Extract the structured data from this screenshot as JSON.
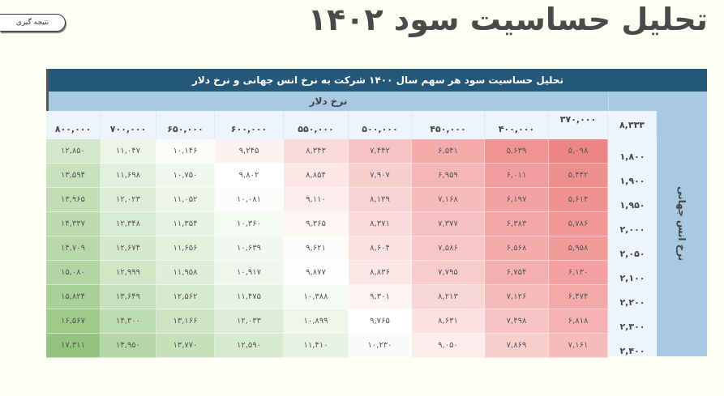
{
  "page": {
    "title": "تحلیل حساسیت سود ۱۴۰۲",
    "button_label": "نتیجه گیری"
  },
  "table": {
    "caption": "تحلیل حساسیت سود هر سهم سال ۱۴۰۰  شرکت به نرخ انس جهانی و نرخ دلار",
    "column_group_label": "نرخ دلار",
    "row_group_label": "نرخ انس جهانی",
    "corner_value": "۸,۳۳۳",
    "columns": [
      "۳۷۰,۰۰۰",
      "۴۰۰,۰۰۰",
      "۴۵۰,۰۰۰",
      "۵۰۰,۰۰۰",
      "۵۵۰,۰۰۰",
      "۶۰۰,۰۰۰",
      "۶۵۰,۰۰۰",
      "۷۰۰,۰۰۰",
      "۸۰۰,۰۰۰"
    ],
    "rows": [
      {
        "label": "۱,۸۰۰",
        "values": [
          "۵,۰۹۸",
          "۵,۶۳۹",
          "۶,۵۴۱",
          "۷,۴۴۲",
          "۸,۳۴۳",
          "۹,۲۴۵",
          "۱۰,۱۴۶",
          "۱۱,۰۴۷",
          "۱۲,۸۵۰"
        ]
      },
      {
        "label": "۱,۹۰۰",
        "values": [
          "۵,۴۴۲",
          "۶,۰۱۱",
          "۶,۹۵۹",
          "۷,۹۰۷",
          "۸,۸۵۴",
          "۹,۸۰۲",
          "۱۰,۷۵۰",
          "۱۱,۶۹۸",
          "۱۳,۵۹۴"
        ]
      },
      {
        "label": "۱,۹۵۰",
        "values": [
          "۵,۶۱۴",
          "۶,۱۹۷",
          "۷,۱۶۸",
          "۸,۱۳۹",
          "۹,۱۱۰",
          "۱۰,۰۸۱",
          "۱۱,۰۵۲",
          "۱۲,۰۲۳",
          "۱۳,۹۶۵"
        ]
      },
      {
        "label": "۲,۰۰۰",
        "values": [
          "۵,۷۸۶",
          "۶,۳۸۳",
          "۷,۳۷۷",
          "۸,۳۷۱",
          "۹,۳۶۵",
          "۱۰,۳۶۰",
          "۱۱,۳۵۴",
          "۱۲,۳۴۸",
          "۱۴,۳۳۷"
        ]
      },
      {
        "label": "۲,۰۵۰",
        "values": [
          "۵,۹۵۸",
          "۶,۵۶۸",
          "۷,۵۸۶",
          "۸,۶۰۴",
          "۹,۶۲۱",
          "۱۰,۶۳۹",
          "۱۱,۶۵۶",
          "۱۲,۶۷۴",
          "۱۴,۷۰۹"
        ]
      },
      {
        "label": "۲,۱۰۰",
        "values": [
          "۶,۱۳۰",
          "۶,۷۵۴",
          "۷,۷۹۵",
          "۸,۸۳۶",
          "۹,۸۷۷",
          "۱۰,۹۱۷",
          "۱۱,۹۵۸",
          "۱۲,۹۹۹",
          "۱۵,۰۸۰"
        ]
      },
      {
        "label": "۲,۲۰۰",
        "values": [
          "۶,۴۷۴",
          "۷,۱۲۶",
          "۸,۲۱۳",
          "۹,۳۰۱",
          "۱۰,۳۸۸",
          "۱۱,۴۷۵",
          "۱۲,۵۶۲",
          "۱۳,۶۴۹",
          "۱۵,۸۲۴"
        ]
      },
      {
        "label": "۲,۳۰۰",
        "values": [
          "۶,۸۱۸",
          "۷,۴۹۸",
          "۸,۶۳۱",
          "۹,۷۶۵",
          "۱۰,۸۹۹",
          "۱۲,۰۳۳",
          "۱۳,۱۶۶",
          "۱۴,۳۰۰",
          "۱۶,۵۶۷"
        ]
      },
      {
        "label": "۲,۴۰۰",
        "values": [
          "۷,۱۶۱",
          "۷,۸۶۹",
          "۹,۰۵۰",
          "۱۰,۲۳۰",
          "۱۱,۴۱۰",
          "۱۲,۵۹۰",
          "۱۳,۷۷۰",
          "۱۴,۹۵۰",
          "۱۷,۳۱۱"
        ]
      }
    ],
    "numeric_values": [
      [
        5098,
        5639,
        6541,
        7442,
        8343,
        9245,
        10146,
        11047,
        12850
      ],
      [
        5442,
        6011,
        6959,
        7907,
        8854,
        9802,
        10750,
        11698,
        13594
      ],
      [
        5614,
        6197,
        7168,
        8139,
        9110,
        10081,
        11052,
        12023,
        13965
      ],
      [
        5786,
        6383,
        7377,
        8371,
        9365,
        10360,
        11354,
        12348,
        14337
      ],
      [
        5958,
        6568,
        7586,
        8604,
        9621,
        10639,
        11656,
        12674,
        14709
      ],
      [
        6130,
        6754,
        7795,
        8836,
        9877,
        10917,
        11958,
        12999,
        15080
      ],
      [
        6474,
        7126,
        8213,
        9301,
        10388,
        11475,
        12562,
        13649,
        15824
      ],
      [
        6818,
        7498,
        8631,
        9765,
        10899,
        12033,
        13166,
        14300,
        16567
      ],
      [
        7161,
        7869,
        9050,
        10230,
        11410,
        12590,
        13770,
        14950,
        17311
      ]
    ],
    "scale": {
      "min": 5098,
      "mid": 9765,
      "max": 17311,
      "low_color": "#EE8585",
      "mid_color": "#FFFFFF",
      "high_color": "#93C47D"
    }
  },
  "colors": {
    "header_dark": "#255878",
    "header_light": "#A7CAE2",
    "column_header_bg": "#EDF4FB",
    "page_bg": "#FFFEF5",
    "title_color": "#4A4A4A"
  }
}
